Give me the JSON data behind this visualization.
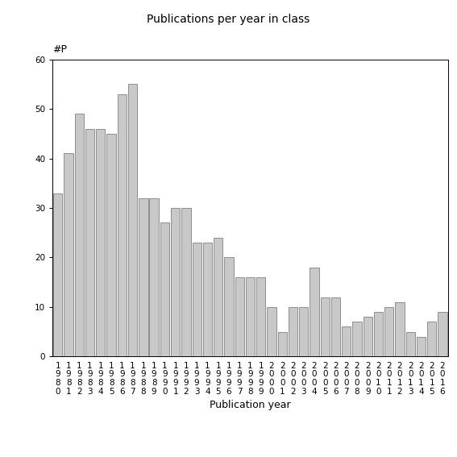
{
  "title": "Publications per year in class",
  "xlabel": "Publication year",
  "ylabel": "#P",
  "years": [
    "1980",
    "1981",
    "1982",
    "1983",
    "1984",
    "1985",
    "1986",
    "1987",
    "1988",
    "1989",
    "1990",
    "1991",
    "1992",
    "1993",
    "1994",
    "1995",
    "1996",
    "1997",
    "1998",
    "1999",
    "2000",
    "2001",
    "2002",
    "2003",
    "2004",
    "2005",
    "2006",
    "2007",
    "2008",
    "2009",
    "2010",
    "2011",
    "2012",
    "2013",
    "2014",
    "2015",
    "2016"
  ],
  "values": [
    33,
    41,
    49,
    46,
    46,
    45,
    53,
    55,
    32,
    32,
    27,
    30,
    30,
    23,
    23,
    24,
    20,
    16,
    16,
    16,
    10,
    5,
    10,
    10,
    18,
    12,
    12,
    6,
    7,
    8,
    9,
    10,
    11,
    5,
    4,
    7,
    9
  ],
  "bar_color": "#c8c8c8",
  "bar_edgecolor": "#808080",
  "ylim": [
    0,
    60
  ],
  "yticks": [
    0,
    10,
    20,
    30,
    40,
    50,
    60
  ],
  "title_fontsize": 10,
  "label_fontsize": 9,
  "tick_fontsize": 7.5,
  "bg_color": "#ffffff"
}
